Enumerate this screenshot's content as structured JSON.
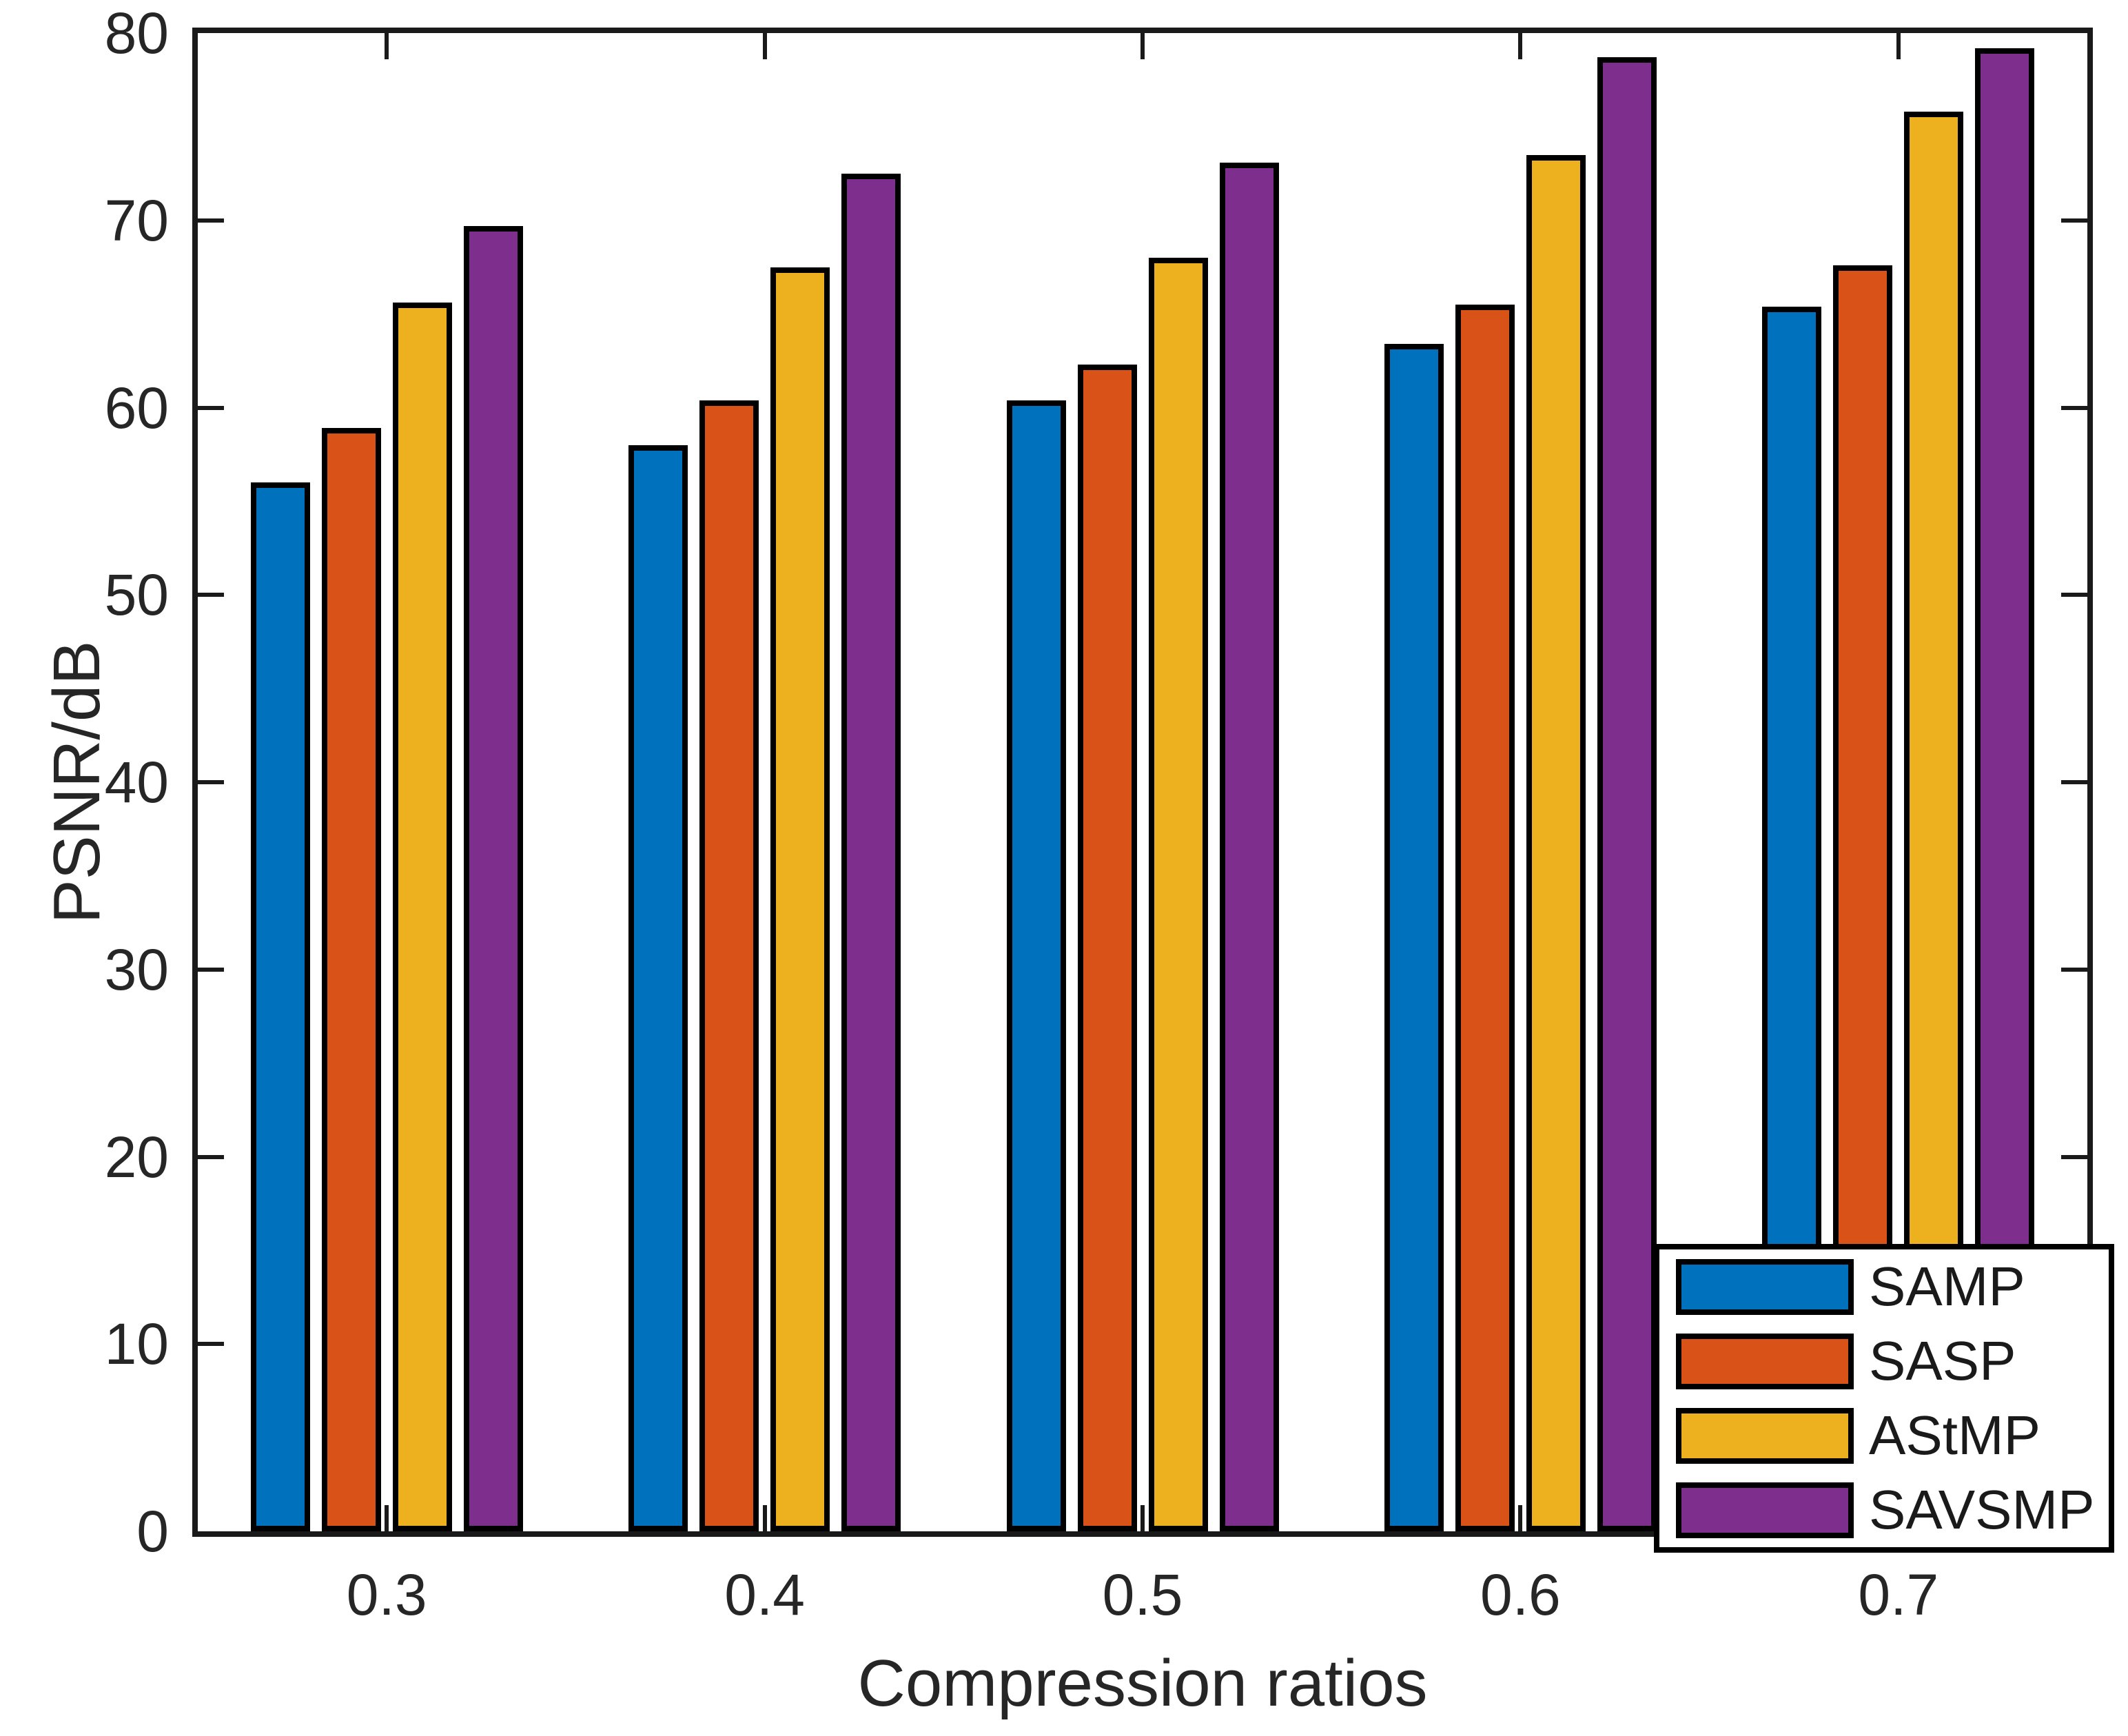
{
  "chart_data": {
    "type": "bar",
    "title": "",
    "xlabel": "Compression ratios",
    "ylabel": "PSNR/dB",
    "categories": [
      "0.3",
      "0.4",
      "0.5",
      "0.6",
      "0.7"
    ],
    "series": [
      {
        "name": "SAMP",
        "color": "#0072BD",
        "values": [
          56.0,
          58.0,
          60.4,
          63.4,
          65.4
        ]
      },
      {
        "name": "SASP",
        "color": "#D95319",
        "values": [
          58.9,
          60.4,
          62.3,
          65.5,
          67.6
        ]
      },
      {
        "name": "AStMP",
        "color": "#EDB120",
        "values": [
          65.6,
          67.5,
          68.0,
          73.5,
          75.8
        ]
      },
      {
        "name": "SAVSMP",
        "color": "#7E2F8E",
        "values": [
          69.7,
          72.5,
          73.1,
          78.7,
          79.2
        ]
      }
    ],
    "ylim": [
      0,
      80
    ],
    "yticks": [
      0,
      10,
      20,
      30,
      40,
      50,
      60,
      70,
      80
    ],
    "grid": false,
    "legend_position": "lower-right",
    "bar_edge_color": "#000000",
    "axis_color": "#1a1a1a"
  }
}
